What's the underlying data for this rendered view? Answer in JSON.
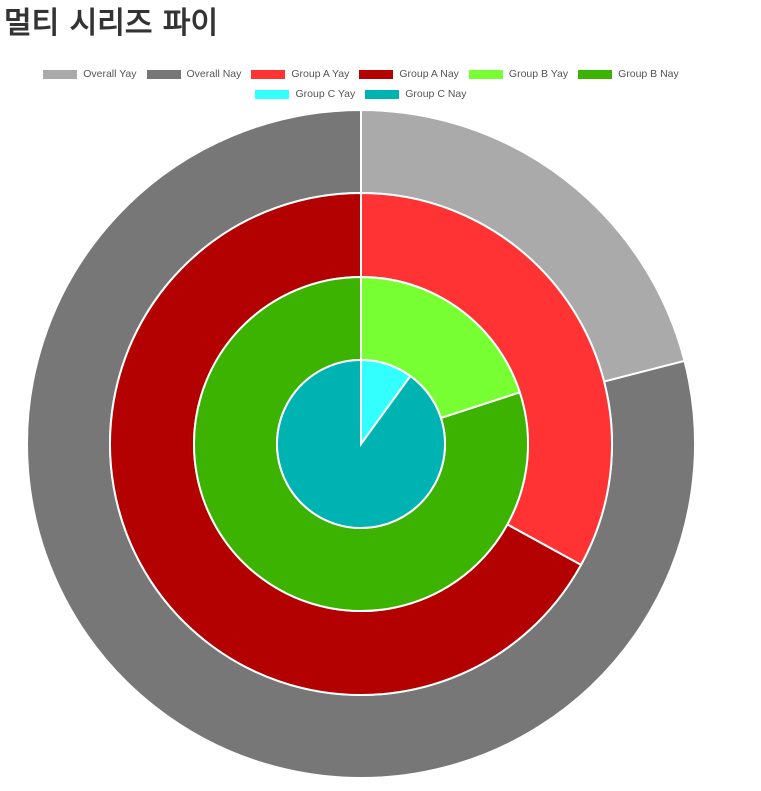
{
  "page": {
    "title": "멀티 시리즈 파이"
  },
  "legend": {
    "rows": [
      [
        {
          "label": "Overall Yay",
          "color": "#aaaaaa"
        },
        {
          "label": "Overall Nay",
          "color": "#777777"
        },
        {
          "label": "Group A Yay",
          "color": "#ff3333"
        },
        {
          "label": "Group A Nay",
          "color": "#b30000"
        },
        {
          "label": "Group B Yay",
          "color": "#77ff33"
        },
        {
          "label": "Group B Nay",
          "color": "#3cb300"
        }
      ],
      [
        {
          "label": "Group C Yay",
          "color": "#33ffff"
        },
        {
          "label": "Group C Nay",
          "color": "#00b3b3"
        }
      ]
    ]
  },
  "chart_data": {
    "type": "pie",
    "title": "멀티 시리즈 파이",
    "legend_position": "top",
    "rings_outer_to_inner": [
      {
        "name": "Overall",
        "labels": [
          "Overall Yay",
          "Overall Nay"
        ],
        "values": [
          21,
          79
        ],
        "colors": [
          "#aaaaaa",
          "#777777"
        ]
      },
      {
        "name": "Group A",
        "labels": [
          "Group A Yay",
          "Group A Nay"
        ],
        "values": [
          33,
          67
        ],
        "colors": [
          "#ff3333",
          "#b30000"
        ]
      },
      {
        "name": "Group B",
        "labels": [
          "Group B Yay",
          "Group B Nay"
        ],
        "values": [
          20,
          80
        ],
        "colors": [
          "#77ff33",
          "#3cb300"
        ]
      },
      {
        "name": "Group C",
        "labels": [
          "Group C Yay",
          "Group C Nay"
        ],
        "values": [
          10,
          90
        ],
        "colors": [
          "#33ffff",
          "#00b3b3"
        ]
      }
    ]
  }
}
